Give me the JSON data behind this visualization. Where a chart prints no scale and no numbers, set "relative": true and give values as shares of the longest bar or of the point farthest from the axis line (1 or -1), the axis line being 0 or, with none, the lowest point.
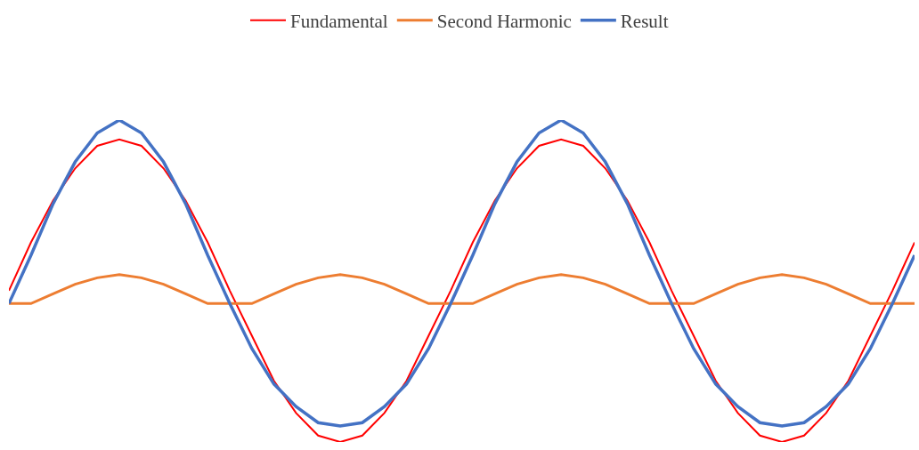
{
  "chart_data": {
    "type": "line",
    "relative": true,
    "legend": "top",
    "categories": [
      null,
      null,
      null,
      null,
      null,
      null,
      null,
      null,
      null,
      null,
      null,
      null,
      null,
      null,
      null,
      null,
      null,
      null,
      null,
      null,
      null,
      null,
      null,
      null,
      null,
      null,
      null,
      null,
      null,
      null,
      null,
      null,
      null,
      null,
      null,
      null,
      null,
      null,
      null,
      null,
      null,
      null
    ],
    "series": [
      {
        "name": "Fundamental",
        "color": "#ff0000",
        "values": [
          0.47,
          0.62,
          0.75,
          0.85,
          0.92,
          0.94,
          0.92,
          0.85,
          0.75,
          0.62,
          0.47,
          0.33,
          0.19,
          0.09,
          0.02,
          0,
          0.02,
          0.09,
          0.19,
          0.33,
          0.47,
          0.62,
          0.75,
          0.85,
          0.92,
          0.94,
          0.92,
          0.85,
          0.75,
          0.62,
          0.47,
          0.33,
          0.19,
          0.09,
          0.02,
          0,
          0.02,
          0.09,
          0.19,
          0.33,
          0.47,
          0.62
        ]
      },
      {
        "name": "Second Harmonic",
        "color": "#ed7d31",
        "values": [
          0.43,
          0.43,
          0.46,
          0.49,
          0.51,
          0.52,
          0.51,
          0.49,
          0.46,
          0.43,
          0.43,
          0.43,
          0.46,
          0.49,
          0.51,
          0.52,
          0.51,
          0.49,
          0.46,
          0.43,
          0.43,
          0.43,
          0.46,
          0.49,
          0.51,
          0.52,
          0.51,
          0.49,
          0.46,
          0.43,
          0.43,
          0.43,
          0.46,
          0.49,
          0.51,
          0.52,
          0.51,
          0.49,
          0.46,
          0.43,
          0.43,
          0.43
        ]
      },
      {
        "name": "Result",
        "color": "#4472c4",
        "values": [
          0.43,
          0.58,
          0.74,
          0.87,
          0.96,
          1,
          0.96,
          0.87,
          0.74,
          0.58,
          0.43,
          0.29,
          0.18,
          0.11,
          0.06,
          0.05,
          0.06,
          0.11,
          0.18,
          0.29,
          0.43,
          0.58,
          0.74,
          0.87,
          0.96,
          1,
          0.96,
          0.87,
          0.74,
          0.58,
          0.43,
          0.29,
          0.18,
          0.11,
          0.06,
          0.05,
          0.06,
          0.11,
          0.18,
          0.29,
          0.43,
          0.58
        ]
      }
    ]
  }
}
